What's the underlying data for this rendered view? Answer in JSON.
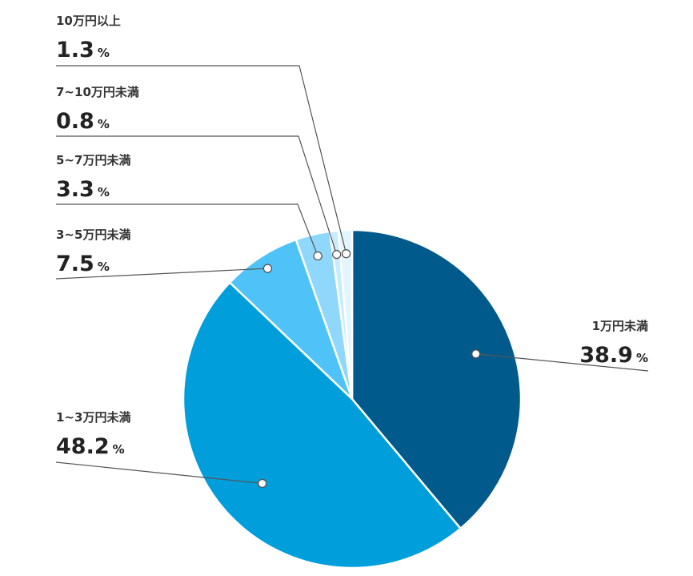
{
  "chart_data": {
    "type": "pie",
    "categories": [
      "1万円未満",
      "1~3万円未満",
      "3~5万円未満",
      "5~7万円未満",
      "7~10万円未満",
      "10万円以上"
    ],
    "values": [
      38.9,
      48.2,
      7.5,
      3.3,
      0.8,
      1.3
    ],
    "value_labels": [
      "38.9",
      "48.2",
      "7.5",
      "3.3",
      "0.8",
      "1.3"
    ],
    "unit": "%",
    "colors": [
      "#005A8C",
      "#009EDB",
      "#4FC3F7",
      "#8FD8FB",
      "#C7ECFD",
      "#E3F5FE"
    ],
    "start": "12 o'clock",
    "direction": "clockwise",
    "legend": "none"
  }
}
